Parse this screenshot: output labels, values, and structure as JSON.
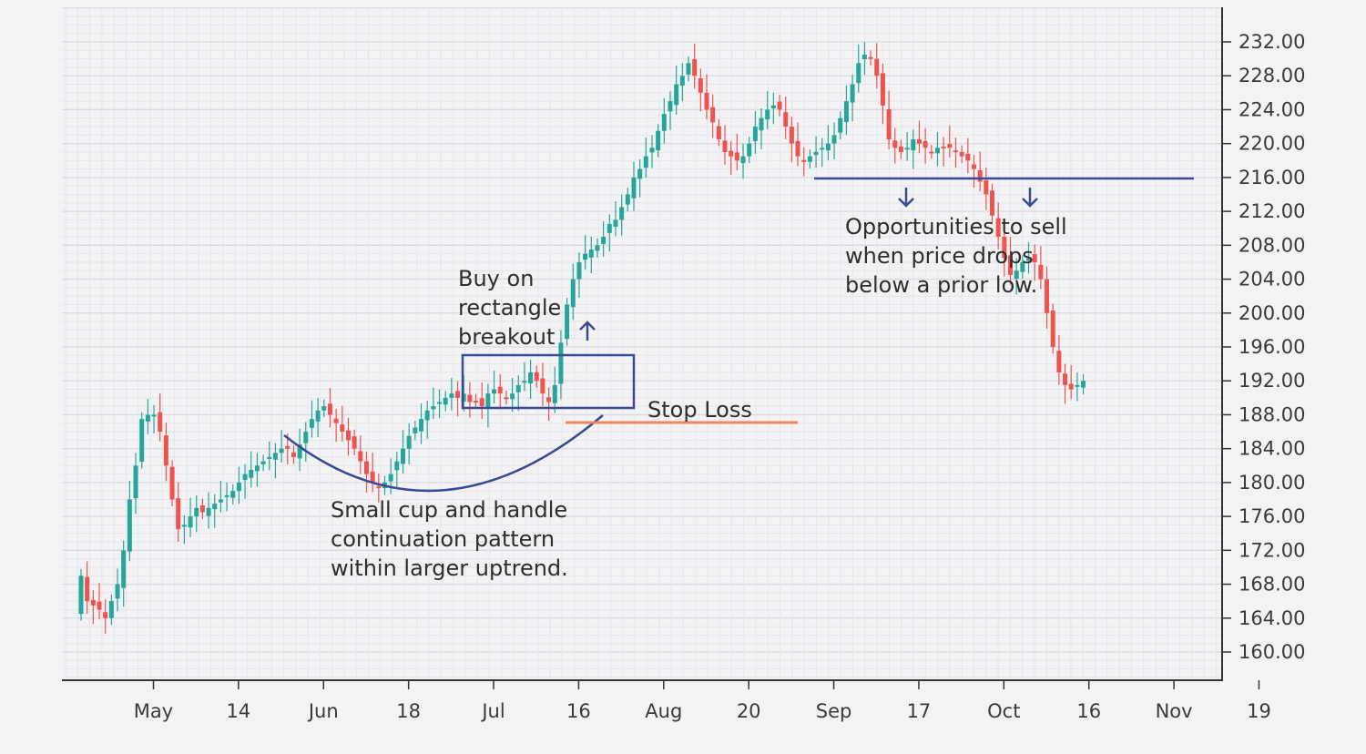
{
  "chart_data": {
    "type": "candlestick",
    "y_axis": {
      "range": [
        156,
        236
      ],
      "position": "right",
      "ticks": [
        160,
        164,
        168,
        172,
        176,
        180,
        184,
        188,
        192,
        196,
        200,
        204,
        208,
        212,
        216,
        220,
        224,
        228,
        232
      ],
      "tick_labels": [
        "160.00",
        "164.00",
        "168.00",
        "172.00",
        "176.00",
        "180.00",
        "184.00",
        "188.00",
        "192.00",
        "196.00",
        "200.00",
        "204.00",
        "208.00",
        "212.00",
        "216.00",
        "220.00",
        "224.00",
        "228.00",
        "232.00"
      ]
    },
    "x_axis": {
      "ticks": [
        {
          "index": 6,
          "label": "May"
        },
        {
          "index": 20,
          "label": "14"
        },
        {
          "index": 34,
          "label": "Jun"
        },
        {
          "index": 48,
          "label": "18"
        },
        {
          "index": 62,
          "label": "Jul"
        },
        {
          "index": 76,
          "label": "16"
        },
        {
          "index": 90,
          "label": "Aug"
        },
        {
          "index": 104,
          "label": "20"
        },
        {
          "index": 118,
          "label": "Sep"
        },
        {
          "index": 132,
          "label": "17"
        },
        {
          "index": 146,
          "label": "Oct"
        },
        {
          "index": 160,
          "label": "16"
        },
        {
          "index": 174,
          "label": "Nov"
        },
        {
          "index": 188,
          "label": "19"
        }
      ]
    },
    "grid": true,
    "colors": {
      "up": "#26a69a",
      "down": "#ef5350",
      "annotation_line": "#3b4a94",
      "stop_loss": "#f0875a"
    },
    "close": [
      169.0,
      166.0,
      165.5,
      165.0,
      164.0,
      166.0,
      168.0,
      172.0,
      178.0,
      182.0,
      187.5,
      188.0,
      188.0,
      186.0,
      182.0,
      178.0,
      174.5,
      175.0,
      176.0,
      177.0,
      176.5,
      177.0,
      177.5,
      178.0,
      178.5,
      179.0,
      180.0,
      181.0,
      181.5,
      182.0,
      182.5,
      183.0,
      183.5,
      184.0,
      184.0,
      183.0,
      184.5,
      186.0,
      187.5,
      188.5,
      189.0,
      188.0,
      187.0,
      186.0,
      185.0,
      184.0,
      182.5,
      181.0,
      180.0,
      179.5,
      180.0,
      181.0,
      182.5,
      184.0,
      185.5,
      186.5,
      187.5,
      188.5,
      189.0,
      189.5,
      190.0,
      190.5,
      190.0,
      190.5,
      189.5,
      189.5,
      189.0,
      190.5,
      191.0,
      190.5,
      190.0,
      190.5,
      191.5,
      192.0,
      193.0,
      192.0,
      190.5,
      189.5,
      191.5,
      196.5,
      201.0,
      204.0,
      206.0,
      207.0,
      207.5,
      208.0,
      209.0,
      210.5,
      211.0,
      212.5,
      214.0,
      216.0,
      217.0,
      218.5,
      219.5,
      221.5,
      223.5,
      225.0,
      227.0,
      228.0,
      229.5,
      228.0,
      226.0,
      224.0,
      222.5,
      220.5,
      219.0,
      218.5,
      218.0,
      218.5,
      220.0,
      222.0,
      223.0,
      224.0,
      224.5,
      224.0,
      222.0,
      220.0,
      218.5,
      218.0,
      218.5,
      219.0,
      219.5,
      220.0,
      221.0,
      223.0,
      225.0,
      227.0,
      229.5,
      230.5,
      230.0,
      228.0,
      224.5,
      220.5,
      219.5,
      219.0,
      219.5,
      220.5,
      220.0,
      219.5,
      219.0,
      219.5,
      219.5,
      219.5,
      219.0,
      218.5,
      218.0,
      217.0,
      215.5,
      214.0,
      211.5,
      209.0,
      206.5,
      204.5,
      205.0,
      206.0,
      206.5,
      206.0,
      204.0,
      200.0,
      196.0,
      193.0,
      191.5,
      191.0,
      191.5,
      192.0
    ],
    "annotations": {
      "cup_label": [
        "Small cup and handle",
        "continuation pattern",
        "within larger uptrend."
      ],
      "buy_label": [
        "Buy on",
        "rectangle",
        "breakout"
      ],
      "stop_label": "Stop Loss",
      "sell_label": [
        "Opportunities to sell",
        "when price drops",
        "below a prior low."
      ],
      "rectangle_range": [
        189,
        195
      ],
      "stop_loss_level": 187.8,
      "prior_low_level": 216
    }
  }
}
